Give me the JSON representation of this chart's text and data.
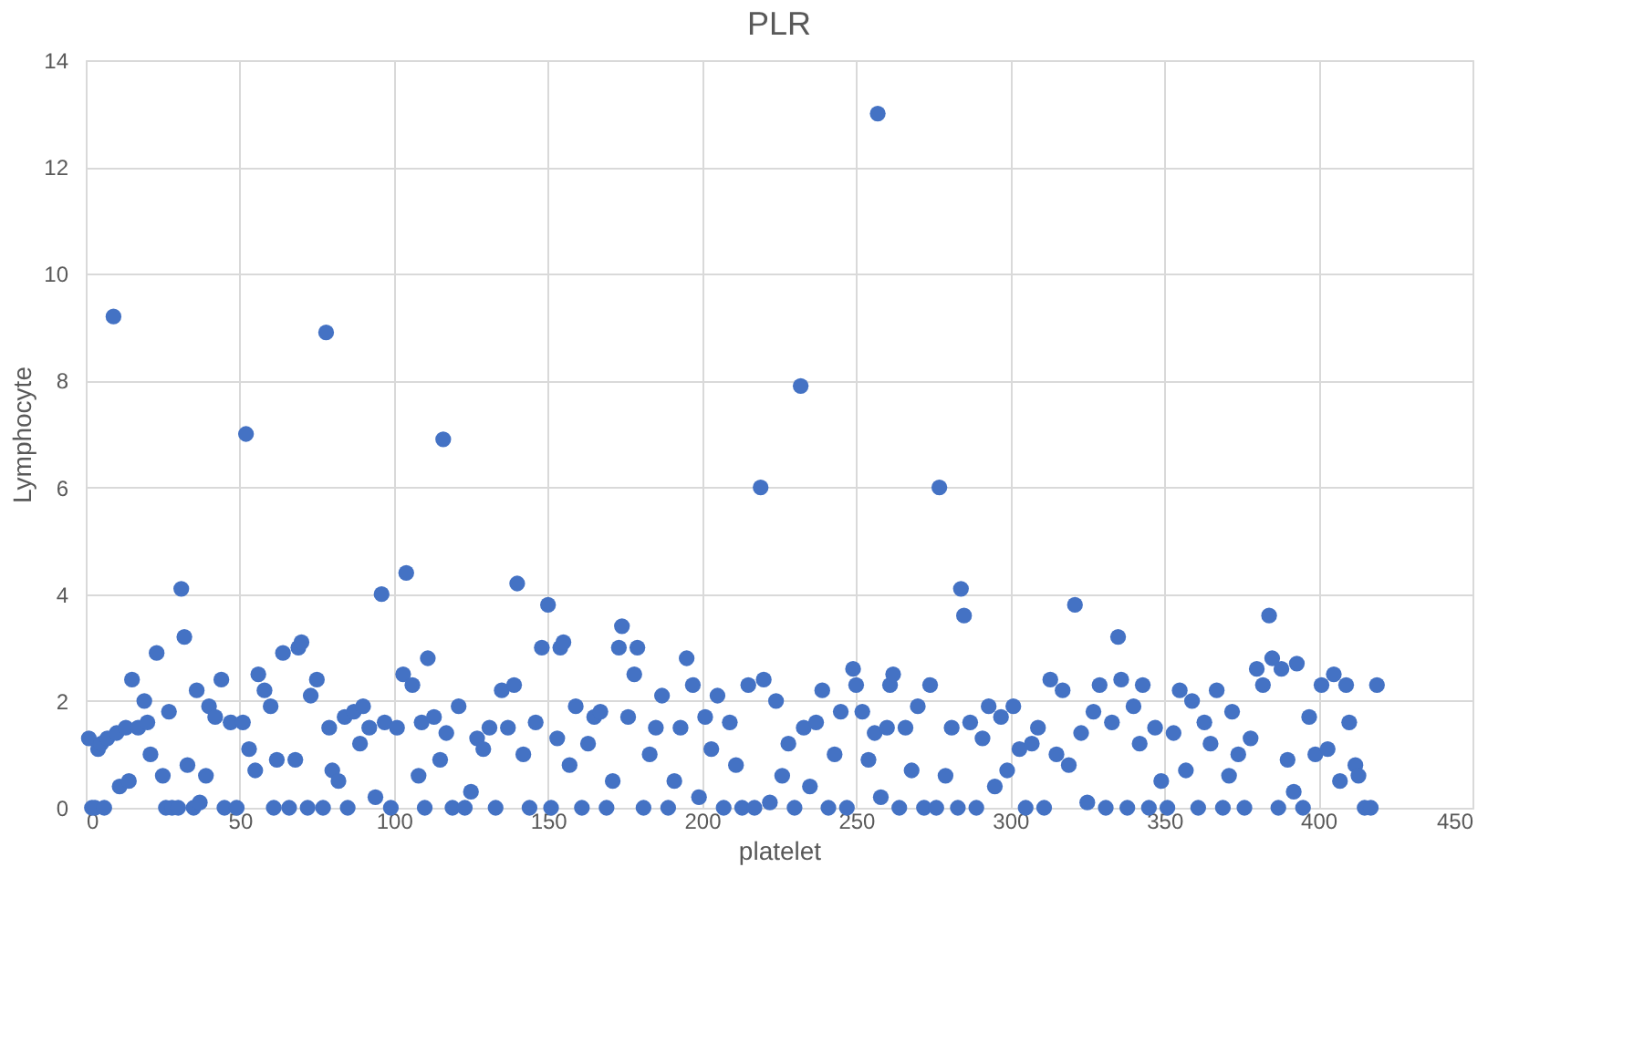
{
  "chart_data": {
    "type": "scatter",
    "title": "PLR",
    "xlabel": "platelet",
    "ylabel": "Lymphocyte",
    "xlim": [
      0,
      450
    ],
    "xticks": [
      0,
      50,
      100,
      150,
      200,
      250,
      300,
      350,
      400,
      450
    ],
    "ylim": [
      0,
      14
    ],
    "yticks": [
      0,
      2,
      4,
      6,
      8,
      10,
      12,
      14
    ],
    "grid": true,
    "marker": "circle",
    "series": [
      {
        "color": "#4472c4",
        "x": [
          1,
          2,
          3,
          4,
          5,
          6,
          7,
          9,
          10,
          11,
          13,
          14,
          15,
          17,
          19,
          20,
          21,
          23,
          25,
          26,
          27,
          28,
          30,
          31,
          32,
          33,
          35,
          36,
          37,
          39,
          40,
          42,
          44,
          45,
          47,
          49,
          51,
          52,
          53,
          55,
          56,
          58,
          60,
          61,
          62,
          64,
          66,
          68,
          69,
          70,
          72,
          73,
          75,
          77,
          78,
          79,
          80,
          82,
          84,
          85,
          87,
          89,
          90,
          92,
          94,
          96,
          97,
          99,
          101,
          103,
          104,
          106,
          108,
          109,
          110,
          111,
          113,
          115,
          116,
          117,
          119,
          121,
          123,
          125,
          127,
          129,
          131,
          133,
          135,
          137,
          139,
          140,
          142,
          144,
          146,
          148,
          150,
          151,
          153,
          154,
          155,
          157,
          159,
          161,
          163,
          165,
          167,
          169,
          171,
          173,
          174,
          176,
          178,
          179,
          181,
          183,
          185,
          187,
          189,
          191,
          193,
          195,
          197,
          199,
          201,
          203,
          205,
          207,
          209,
          211,
          213,
          215,
          217,
          219,
          220,
          222,
          224,
          226,
          228,
          230,
          232,
          233,
          235,
          237,
          239,
          241,
          243,
          245,
          247,
          249,
          250,
          252,
          254,
          256,
          257,
          258,
          260,
          261,
          262,
          264,
          266,
          268,
          270,
          272,
          274,
          276,
          277,
          279,
          281,
          283,
          284,
          285,
          287,
          289,
          291,
          293,
          295,
          297,
          299,
          301,
          303,
          305,
          307,
          309,
          311,
          313,
          315,
          317,
          319,
          321,
          323,
          325,
          327,
          329,
          331,
          333,
          335,
          336,
          338,
          340,
          342,
          343,
          345,
          347,
          349,
          351,
          353,
          355,
          357,
          359,
          361,
          363,
          365,
          367,
          369,
          371,
          372,
          374,
          376,
          378,
          380,
          382,
          384,
          385,
          387,
          388,
          390,
          392,
          393,
          395,
          397,
          399,
          401,
          403,
          405,
          407,
          409,
          410,
          412,
          413,
          415,
          417,
          419
        ],
        "values": [
          1.3,
          0,
          0,
          1.1,
          1.2,
          0,
          1.3,
          9.2,
          1.4,
          0.4,
          1.5,
          0.5,
          2.4,
          1.5,
          2.0,
          1.6,
          1.0,
          2.9,
          0.6,
          0,
          1.8,
          0,
          0,
          4.1,
          3.2,
          0.8,
          0,
          2.2,
          0.1,
          0.6,
          1.9,
          1.7,
          2.4,
          0,
          1.6,
          0,
          1.6,
          7.0,
          1.1,
          0.7,
          2.5,
          2.2,
          1.9,
          0,
          0.9,
          2.9,
          0,
          0.9,
          3.0,
          3.1,
          0,
          2.1,
          2.4,
          0,
          8.9,
          1.5,
          0.7,
          0.5,
          1.7,
          0,
          1.8,
          1.2,
          1.9,
          1.5,
          0.2,
          4.0,
          1.6,
          0,
          1.5,
          2.5,
          4.4,
          2.3,
          0.6,
          1.6,
          0,
          2.8,
          1.7,
          0.9,
          6.9,
          1.4,
          0,
          1.9,
          0,
          0.3,
          1.3,
          1.1,
          1.5,
          0,
          2.2,
          1.5,
          2.3,
          4.2,
          1.0,
          0,
          1.6,
          3.0,
          3.8,
          0,
          1.3,
          3.0,
          3.1,
          0.8,
          1.9,
          0,
          1.2,
          1.7,
          1.8,
          0,
          0.5,
          3.0,
          3.4,
          1.7,
          2.5,
          3.0,
          0,
          1.0,
          1.5,
          2.1,
          0,
          0.5,
          1.5,
          2.8,
          2.3,
          0.2,
          1.7,
          1.1,
          2.1,
          0,
          1.6,
          0.8,
          0,
          2.3,
          0,
          6.0,
          2.4,
          0.1,
          2.0,
          0.6,
          1.2,
          0,
          7.9,
          1.5,
          0.4,
          1.6,
          2.2,
          0,
          1.0,
          1.8,
          0,
          2.6,
          2.3,
          1.8,
          0.9,
          1.4,
          13.0,
          0.2,
          1.5,
          2.3,
          2.5,
          0,
          1.5,
          0.7,
          1.9,
          0,
          2.3,
          0,
          6.0,
          0.6,
          1.5,
          0,
          4.1,
          3.6,
          1.6,
          0,
          1.3,
          1.9,
          0.4,
          1.7,
          0.7,
          1.9,
          1.1,
          0,
          1.2,
          1.5,
          0,
          2.4,
          1.0,
          2.2,
          0.8,
          3.8,
          1.4,
          0.1,
          1.8,
          2.3,
          0,
          1.6,
          3.2,
          2.4,
          0,
          1.9,
          1.2,
          2.3,
          0,
          1.5,
          0.5,
          0,
          1.4,
          2.2,
          0.7,
          2.0,
          0,
          1.6,
          1.2,
          2.2,
          0,
          0.6,
          1.8,
          1.0,
          0,
          1.3,
          2.6,
          2.3,
          3.6,
          2.8,
          0,
          2.6,
          0.9,
          0.3,
          2.7,
          0,
          1.7,
          1.0,
          2.3,
          1.1,
          2.5,
          0.5,
          2.3,
          1.6,
          0.8,
          0.6,
          0,
          0,
          2.3
        ]
      }
    ]
  }
}
